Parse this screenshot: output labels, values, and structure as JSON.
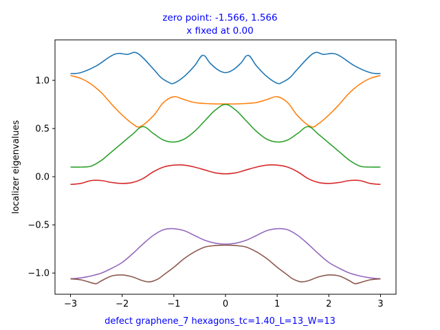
{
  "figure": {
    "title_line1": "zero point: -1.566, 1.566",
    "title_line2": "x fixed at 0.00",
    "title_color": "#0000ff",
    "xlabel_color": "#0000ff"
  },
  "chart_data": {
    "type": "line",
    "title": "zero point: -1.566, 1.566\nx fixed at 0.00",
    "xlabel": "defect graphene_7 hexagons_tc=1.40_L=13_W=13",
    "ylabel": "localizer eigenvalues",
    "xlim": [
      -3.3,
      3.3
    ],
    "ylim": [
      -1.22,
      1.42
    ],
    "xticks": [
      -3,
      -2,
      -1,
      0,
      1,
      2,
      3
    ],
    "xtick_labels": [
      "−3",
      "−2",
      "−1",
      "0",
      "1",
      "2",
      "3"
    ],
    "yticks": [
      -1.0,
      -0.5,
      0.0,
      0.5,
      1.0
    ],
    "ytick_labels": [
      "−1.0",
      "−0.5",
      "0.0",
      "0.5",
      "1.0"
    ],
    "grid": false,
    "legend": "none",
    "series": [
      {
        "color": "#1f77b4",
        "x": [
          -3.0,
          -2.8,
          -2.5,
          -2.15,
          -1.9,
          -1.7,
          -1.4,
          -1.25,
          -1.1,
          -1.0,
          -0.8,
          -0.6,
          -0.44,
          -0.3,
          -0.15,
          0.0,
          0.15,
          0.3,
          0.44,
          0.6,
          0.8,
          1.0,
          1.1,
          1.25,
          1.4,
          1.7,
          1.9,
          2.15,
          2.5,
          2.8,
          3.0
        ],
        "y": [
          1.07,
          1.08,
          1.15,
          1.27,
          1.27,
          1.28,
          1.12,
          1.03,
          0.98,
          0.97,
          1.04,
          1.15,
          1.26,
          1.18,
          1.11,
          1.08,
          1.11,
          1.18,
          1.26,
          1.15,
          1.04,
          0.97,
          0.98,
          1.03,
          1.12,
          1.28,
          1.27,
          1.27,
          1.15,
          1.08,
          1.07
        ]
      },
      {
        "color": "#ff7f0e",
        "x": [
          -3.0,
          -2.8,
          -2.6,
          -2.4,
          -2.2,
          -2.0,
          -1.8,
          -1.65,
          -1.4,
          -1.2,
          -1.0,
          -0.8,
          -0.6,
          -0.4,
          -0.2,
          0.0,
          0.2,
          0.4,
          0.6,
          0.8,
          1.0,
          1.2,
          1.4,
          1.65,
          1.8,
          2.0,
          2.2,
          2.4,
          2.6,
          2.8,
          3.0
        ],
        "y": [
          1.05,
          1.02,
          0.96,
          0.87,
          0.75,
          0.64,
          0.55,
          0.52,
          0.63,
          0.77,
          0.83,
          0.8,
          0.77,
          0.76,
          0.755,
          0.755,
          0.755,
          0.76,
          0.77,
          0.8,
          0.83,
          0.77,
          0.63,
          0.52,
          0.55,
          0.64,
          0.75,
          0.87,
          0.96,
          1.02,
          1.05
        ]
      },
      {
        "color": "#2ca02c",
        "x": [
          -3.0,
          -2.8,
          -2.6,
          -2.4,
          -2.2,
          -2.0,
          -1.8,
          -1.6,
          -1.4,
          -1.2,
          -1.0,
          -0.8,
          -0.6,
          -0.4,
          -0.2,
          0.0,
          0.2,
          0.4,
          0.6,
          0.8,
          1.0,
          1.2,
          1.4,
          1.6,
          1.8,
          2.0,
          2.2,
          2.4,
          2.6,
          2.8,
          3.0
        ],
        "y": [
          0.1,
          0.1,
          0.11,
          0.17,
          0.26,
          0.35,
          0.44,
          0.52,
          0.45,
          0.38,
          0.36,
          0.39,
          0.47,
          0.58,
          0.69,
          0.75,
          0.69,
          0.58,
          0.47,
          0.39,
          0.36,
          0.38,
          0.45,
          0.52,
          0.44,
          0.35,
          0.26,
          0.17,
          0.11,
          0.1,
          0.1
        ]
      },
      {
        "color": "#d62728",
        "x": [
          -3.0,
          -2.8,
          -2.6,
          -2.4,
          -2.2,
          -2.0,
          -1.8,
          -1.6,
          -1.4,
          -1.2,
          -1.0,
          -0.8,
          -0.6,
          -0.4,
          -0.2,
          0.0,
          0.2,
          0.4,
          0.6,
          0.8,
          1.0,
          1.2,
          1.4,
          1.6,
          1.8,
          2.0,
          2.2,
          2.4,
          2.6,
          2.8,
          3.0
        ],
        "y": [
          -0.08,
          -0.07,
          -0.04,
          -0.04,
          -0.06,
          -0.07,
          -0.06,
          -0.02,
          0.05,
          0.1,
          0.12,
          0.12,
          0.1,
          0.07,
          0.04,
          0.03,
          0.04,
          0.07,
          0.1,
          0.12,
          0.12,
          0.1,
          0.05,
          -0.02,
          -0.06,
          -0.07,
          -0.06,
          -0.04,
          -0.04,
          -0.07,
          -0.08
        ]
      },
      {
        "color": "#9467bd",
        "x": [
          -3.0,
          -2.8,
          -2.6,
          -2.4,
          -2.2,
          -2.0,
          -1.8,
          -1.6,
          -1.4,
          -1.2,
          -1.0,
          -0.8,
          -0.6,
          -0.4,
          -0.2,
          0.0,
          0.2,
          0.4,
          0.6,
          0.8,
          1.0,
          1.2,
          1.4,
          1.6,
          1.8,
          2.0,
          2.2,
          2.4,
          2.6,
          2.8,
          3.0
        ],
        "y": [
          -1.06,
          -1.05,
          -1.03,
          -1.0,
          -0.95,
          -0.89,
          -0.8,
          -0.7,
          -0.61,
          -0.55,
          -0.54,
          -0.56,
          -0.61,
          -0.66,
          -0.69,
          -0.7,
          -0.69,
          -0.66,
          -0.61,
          -0.56,
          -0.54,
          -0.55,
          -0.61,
          -0.7,
          -0.8,
          -0.89,
          -0.95,
          -1.0,
          -1.03,
          -1.05,
          -1.06
        ]
      },
      {
        "color": "#8c564b",
        "x": [
          -3.0,
          -2.8,
          -2.6,
          -2.5,
          -2.4,
          -2.2,
          -2.0,
          -1.8,
          -1.6,
          -1.45,
          -1.3,
          -1.2,
          -1.0,
          -0.8,
          -0.6,
          -0.4,
          -0.2,
          0.0,
          0.2,
          0.4,
          0.6,
          0.8,
          1.0,
          1.2,
          1.3,
          1.45,
          1.6,
          1.8,
          2.0,
          2.2,
          2.4,
          2.5,
          2.6,
          2.8,
          3.0
        ],
        "y": [
          -1.06,
          -1.07,
          -1.1,
          -1.11,
          -1.08,
          -1.03,
          -1.02,
          -1.04,
          -1.08,
          -1.09,
          -1.06,
          -1.02,
          -0.94,
          -0.85,
          -0.78,
          -0.73,
          -0.715,
          -0.71,
          -0.715,
          -0.73,
          -0.78,
          -0.85,
          -0.94,
          -1.02,
          -1.06,
          -1.09,
          -1.08,
          -1.04,
          -1.02,
          -1.03,
          -1.08,
          -1.11,
          -1.1,
          -1.07,
          -1.06
        ]
      }
    ]
  }
}
